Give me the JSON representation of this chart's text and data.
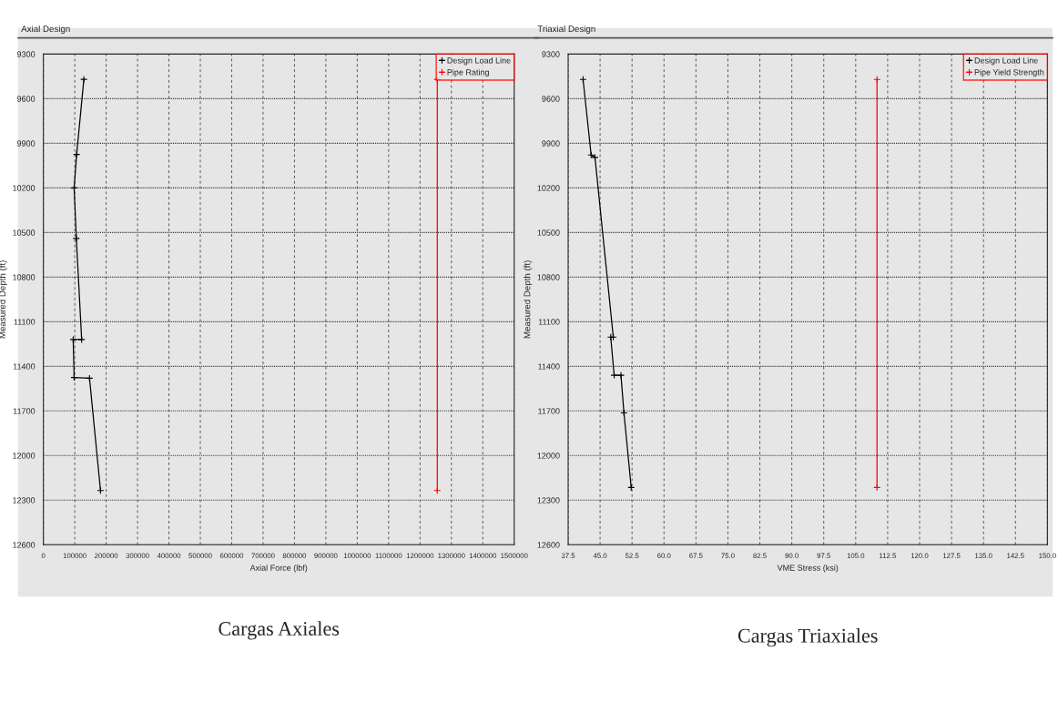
{
  "chart_data": [
    {
      "type": "line",
      "title": "Axial Design",
      "xlabel": "Axial Force (lbf)",
      "ylabel": "Measured Depth (ft)",
      "annotations": [
        "Cargas Axiales"
      ],
      "xlim": [
        0,
        1500000
      ],
      "xticks": [
        0,
        100000,
        200000,
        300000,
        400000,
        500000,
        600000,
        700000,
        800000,
        900000,
        1000000,
        1100000,
        1200000,
        1300000,
        1400000,
        1500000
      ],
      "ylim": [
        12600,
        9300
      ],
      "yticks": [
        9300,
        9600,
        9900,
        10200,
        10500,
        10800,
        11100,
        11400,
        11700,
        12000,
        12300,
        12600
      ],
      "grid": true,
      "legend": "top right",
      "marker": "cross",
      "line_style": "solid",
      "series": [
        {
          "name": "Design Load Line",
          "color": "#000000",
          "x": [
            129000,
            106000,
            98000,
            105000,
            122000,
            95000,
            98000,
            147000,
            182000
          ],
          "values": [
            9470,
            9975,
            10200,
            10540,
            11220,
            11220,
            11475,
            11480,
            12235
          ]
        },
        {
          "name": "Pipe Rating",
          "color": "#ff0000",
          "x": [
            1255000,
            1255000
          ],
          "values": [
            9470,
            12235
          ]
        }
      ]
    },
    {
      "type": "line",
      "title": "Triaxial Design",
      "xlabel": "VME Stress (ksi)",
      "ylabel": "Measured Depth (ft)",
      "annotations": [
        "Cargas Triaxiales"
      ],
      "xlim": [
        37.5,
        150
      ],
      "xticks": [
        37.5,
        {
          "value": 45,
          "label": "45.0"
        },
        52.5,
        {
          "value": 60,
          "label": "60.0"
        },
        67.5,
        {
          "value": 75,
          "label": "75.0"
        },
        82.5,
        {
          "value": 90,
          "label": "90.0"
        },
        97.5,
        {
          "value": 105,
          "label": "105.0"
        },
        112.5,
        {
          "value": 120,
          "label": "120.0"
        },
        127.5,
        {
          "value": 135,
          "label": "135.0"
        },
        142.5,
        {
          "value": 150,
          "label": "150.0"
        }
      ],
      "ylim": [
        12600,
        9300
      ],
      "yticks": [
        9300,
        9600,
        9900,
        10200,
        10500,
        10800,
        11100,
        11400,
        11700,
        12000,
        12300,
        12600
      ],
      "grid": true,
      "legend": "top right",
      "marker": "cross",
      "line_style": "solid",
      "series": [
        {
          "name": "Design Load Line",
          "color": "#000000",
          "x": [
            41.0,
            42.9,
            43.8,
            48.1,
            47.5,
            48.3,
            49.9,
            50.6,
            52.3
          ],
          "values": [
            9471,
            9979,
            9995,
            11204,
            11204,
            11460,
            11460,
            11713,
            12215
          ]
        },
        {
          "name": "Pipe Yield Strength",
          "color": "#ff0000",
          "x": [
            110,
            110
          ],
          "values": [
            9471,
            12215
          ]
        }
      ]
    }
  ]
}
